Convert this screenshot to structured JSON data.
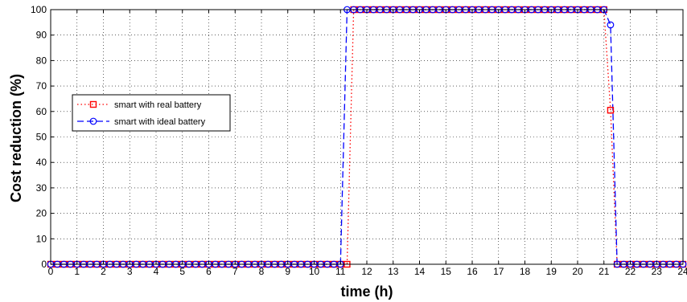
{
  "chart_data": {
    "type": "line",
    "title": "",
    "xlabel": "time (h)",
    "ylabel": "Cost reduction (%)",
    "xlim": [
      0,
      24
    ],
    "ylim": [
      0,
      100
    ],
    "xticks": [
      "0",
      "1",
      "2",
      "3",
      "4",
      "5",
      "6",
      "7",
      "8",
      "9",
      "10",
      "11",
      "12",
      "13",
      "14",
      "15",
      "16",
      "17",
      "18",
      "19",
      "20",
      "21",
      "22",
      "23",
      "24"
    ],
    "yticks": [
      "0",
      "10",
      "20",
      "30",
      "40",
      "50",
      "60",
      "70",
      "80",
      "90",
      "100"
    ],
    "grid": true,
    "legend_position": "left",
    "marker_spacing_h": 0.25,
    "series": [
      {
        "name": "smart with real battery",
        "color": "#ff0000",
        "line_style": "dotted",
        "marker": "square",
        "x": [
          0,
          11.25,
          11.5,
          21.0,
          21.25,
          21.5,
          24
        ],
        "y": [
          0,
          0,
          100,
          100,
          60.5,
          0,
          0
        ]
      },
      {
        "name": "smart with ideal battery",
        "color": "#0000ff",
        "line_style": "dashed",
        "marker": "circle",
        "x": [
          0,
          11.0,
          11.25,
          21.0,
          21.25,
          21.5,
          24
        ],
        "y": [
          0,
          0,
          100,
          100,
          94,
          0,
          0
        ]
      }
    ]
  }
}
